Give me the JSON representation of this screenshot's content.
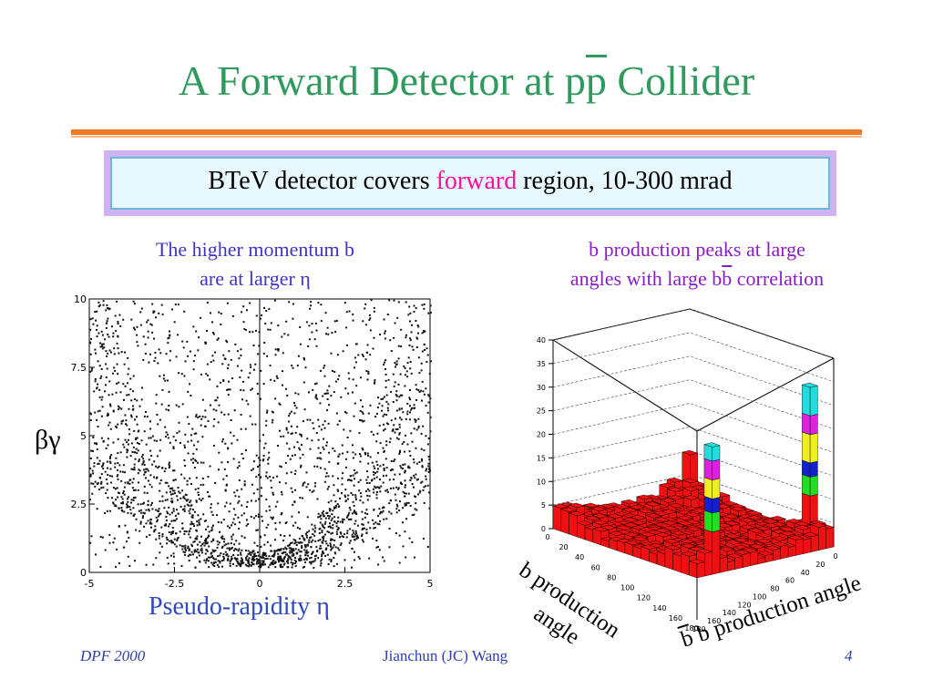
{
  "title": {
    "text_before": "A Forward Detector at p",
    "overline": "p",
    "text_after": " Collider"
  },
  "callout": {
    "before": "BTeV detector covers ",
    "highlight": "forward",
    "after": " region, 10-300 mrad"
  },
  "left_caption": {
    "line1": "The higher momentum b",
    "line2": "are at larger η"
  },
  "right_caption": {
    "line1": "b production peaks at large",
    "line2_before": "angles with large b",
    "line2_over": "b",
    "line2_after": " correlation"
  },
  "chart_data": [
    {
      "type": "scatter",
      "xlabel": "Pseudo-rapidity η",
      "ylabel": "βγ",
      "xlim": [
        -5,
        5
      ],
      "ylim": [
        0,
        10
      ],
      "x_ticks": [
        "-5",
        "-2.5",
        "0",
        "2.5",
        "5"
      ],
      "y_ticks": [
        "0",
        "2.5",
        "5",
        "7.5",
        "10"
      ]
    },
    {
      "type": "heatmap",
      "z_ticks": [
        "0",
        "5",
        "10",
        "15",
        "20",
        "25",
        "30",
        "35",
        "40"
      ],
      "axis1_ticks": [
        "0",
        "20",
        "40",
        "60",
        "80",
        "100",
        "120",
        "140",
        "160",
        "180"
      ],
      "axis2_ticks": [
        "180",
        "160",
        "140",
        "120",
        "100",
        "80",
        "60",
        "40",
        "20",
        "0"
      ],
      "axis1_label_line1": "b production",
      "axis1_label_line2": "angle",
      "axis2_label": "b production angle",
      "axis2_label_over": "b",
      "colors": [
        "#ee1111",
        "#22dd22",
        "#1122cc",
        "#eeee22",
        "#dd22dd",
        "#22dddd"
      ]
    }
  ],
  "footer": {
    "left": "DPF 2000",
    "center": "Jianchun (JC) Wang",
    "right": "4"
  }
}
